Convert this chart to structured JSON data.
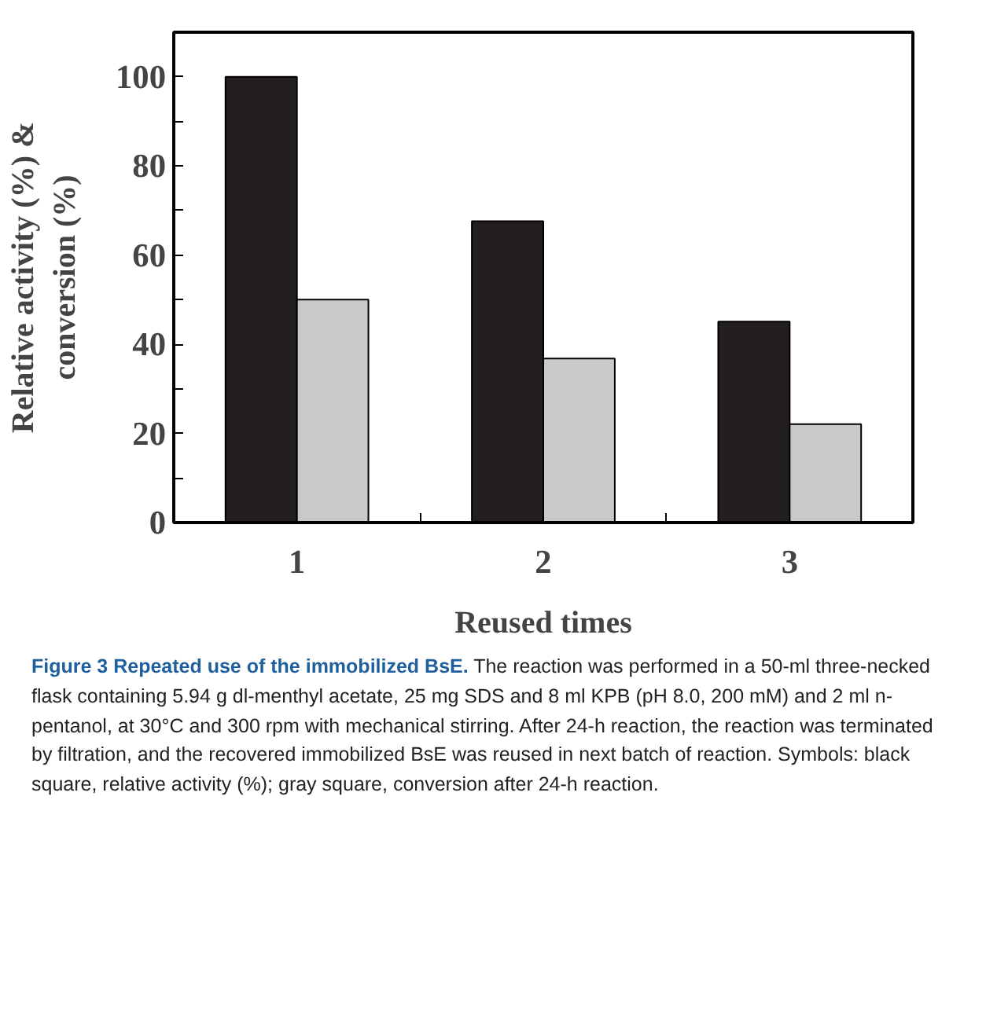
{
  "chart_data": {
    "type": "bar",
    "xlabel": "Reused times",
    "ylabel": "Relative activity (%) &\nconversion (%)",
    "categories": [
      "1",
      "2",
      "3"
    ],
    "series": [
      {
        "color": "#231f20",
        "values": [
          100,
          67.6,
          45.1
        ]
      },
      {
        "color": "#c8c9cb",
        "values": [
          50,
          36.8,
          22.1
        ]
      }
    ],
    "ylim": [
      0,
      110
    ],
    "yticks": [
      0,
      {
        "value": 10,
        "label": null
      },
      20,
      {
        "value": 30,
        "label": null
      },
      40,
      {
        "value": 50,
        "label": null
      },
      60,
      {
        "value": 70,
        "label": null
      },
      80,
      {
        "value": 90,
        "label": null
      },
      100
    ],
    "grid": false,
    "annotations": [
      "Figure 3 Repeated use of the immobilized BsE.",
      "The reaction was performed in a 50-ml three-necked flask containing 5.94 g dl-menthyl acetate, 25 mg SDS and 8 ml KPB (pH 8.0, 200 mM) and 2 ml n-pentanol, at 30°C and 300 rpm with mechanical stirring. After 24-h reaction, the reaction was terminated by filtration, and the recovered immobilized BsE was reused in next batch of reaction. Symbols: black square, relative activity (%); gray square, conversion after 24-h reaction."
    ]
  }
}
